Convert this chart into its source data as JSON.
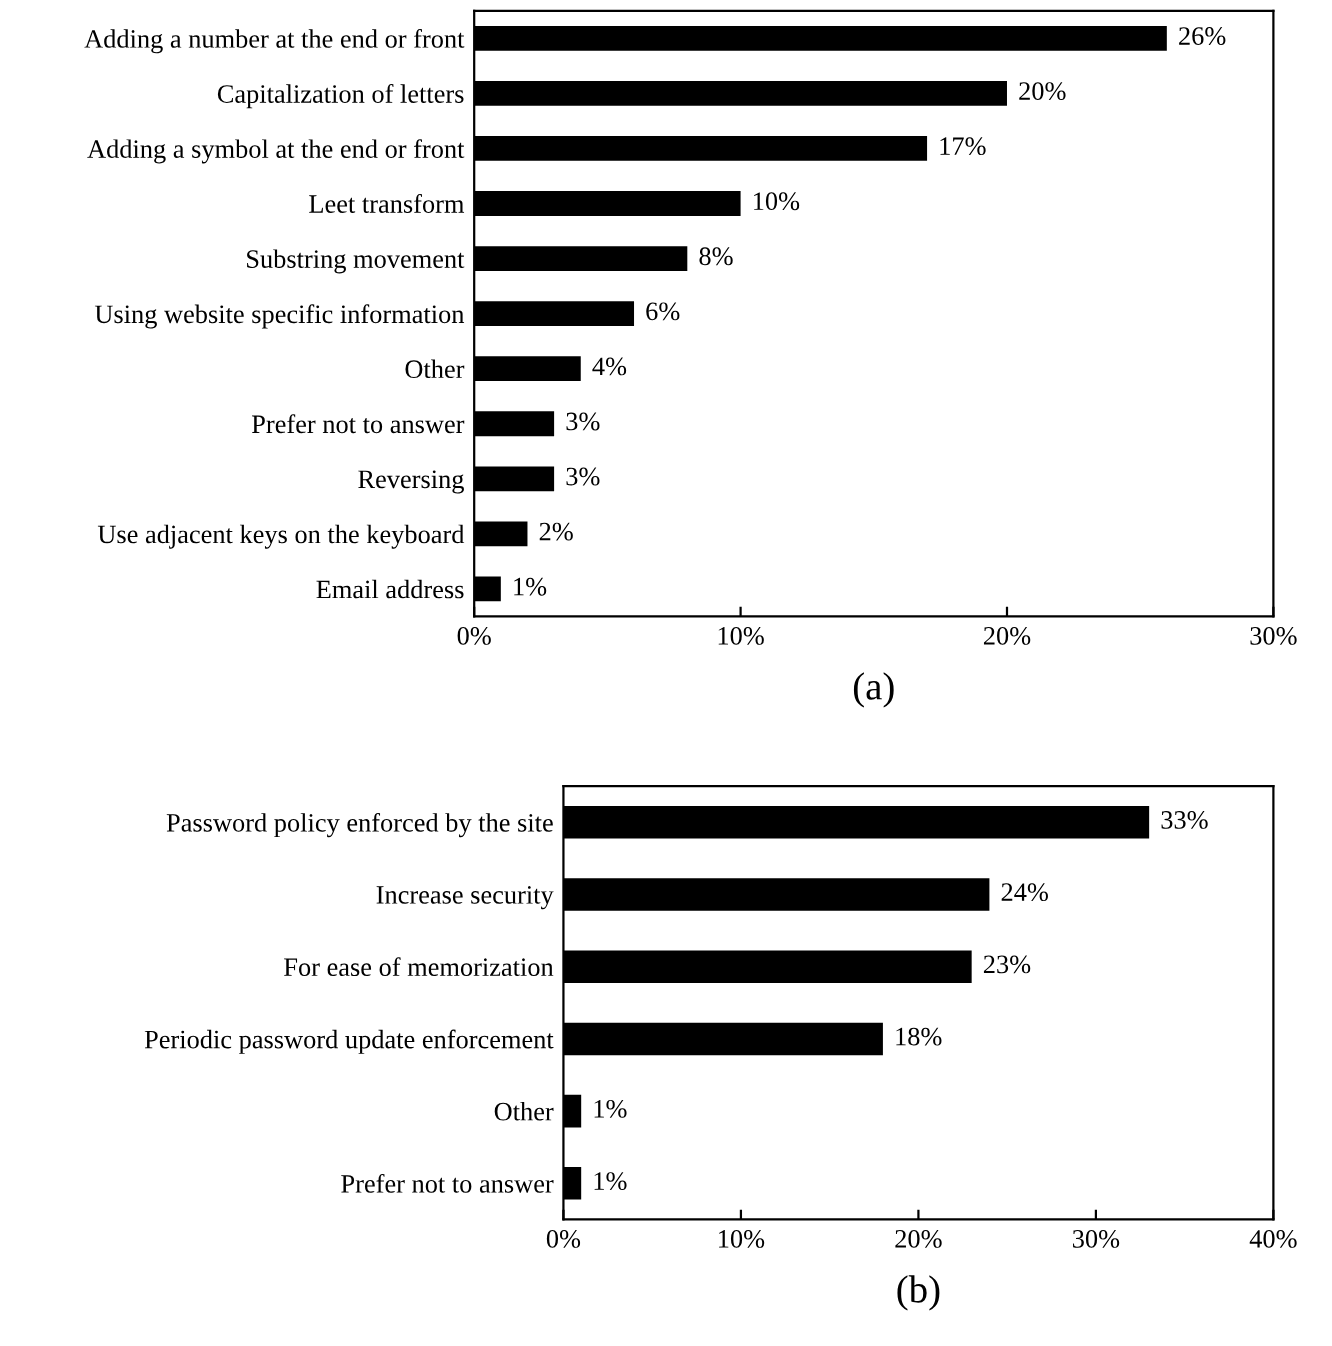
{
  "chart_data": [
    {
      "type": "bar",
      "orientation": "horizontal",
      "xlabel": "(a)",
      "categories": [
        "Adding a number at the end or front",
        "Capitalization of letters",
        "Adding a symbol at the end or front",
        "Leet transform",
        "Substring movement",
        "Using website specific information",
        "Other",
        "Prefer not to answer",
        "Reversing",
        "Use adjacent keys on the keyboard",
        "Email address"
      ],
      "values": [
        26,
        20,
        17,
        10,
        8,
        6,
        4,
        3,
        3,
        2,
        1
      ],
      "value_labels": [
        "26%",
        "20%",
        "17%",
        "10%",
        "8%",
        "6%",
        "4%",
        "3%",
        "3%",
        "2%",
        "1%"
      ],
      "color": "#000000",
      "xlim": [
        0,
        30
      ],
      "xticks": [
        {
          "value": 0,
          "label": "0%"
        },
        {
          "value": 10,
          "label": "10%"
        },
        {
          "value": 20,
          "label": "20%"
        },
        {
          "value": 30,
          "label": "30%"
        }
      ],
      "grid": false,
      "legend": false
    },
    {
      "type": "bar",
      "orientation": "horizontal",
      "xlabel": "(b)",
      "categories": [
        "Password policy enforced by the site",
        "Increase security",
        "For ease of memorization",
        "Periodic password update enforcement",
        "Other",
        "Prefer not to answer"
      ],
      "values": [
        33,
        24,
        23,
        18,
        1,
        1
      ],
      "value_labels": [
        "33%",
        "24%",
        "23%",
        "18%",
        "1%",
        "1%"
      ],
      "color": "#000000",
      "xlim": [
        0,
        40
      ],
      "xticks": [
        {
          "value": 0,
          "label": "0%"
        },
        {
          "value": 10,
          "label": "10%"
        },
        {
          "value": 20,
          "label": "20%"
        },
        {
          "value": 30,
          "label": "30%"
        },
        {
          "value": 40,
          "label": "40%"
        }
      ],
      "grid": false,
      "legend": false
    }
  ]
}
